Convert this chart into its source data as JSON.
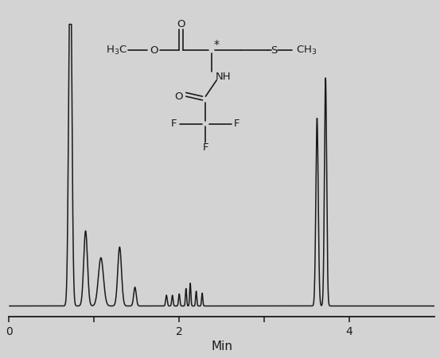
{
  "background_color": "#d3d3d3",
  "line_color": "#1a1a1a",
  "xlim": [
    0,
    5.0
  ],
  "ylim": [
    -0.04,
    1.12
  ],
  "xlabel": "Min",
  "xlabel_fontsize": 11,
  "tick_fontsize": 10,
  "xtick_positions": [
    0,
    1,
    2,
    3,
    4
  ],
  "xtick_labels": [
    "0",
    "",
    "2",
    "",
    "4"
  ],
  "peaks": [
    {
      "mu": 0.72,
      "sigma": 0.018,
      "amp": 1.4
    },
    {
      "mu": 0.9,
      "sigma": 0.022,
      "amp": 0.28
    },
    {
      "mu": 1.08,
      "sigma": 0.03,
      "amp": 0.18
    },
    {
      "mu": 1.3,
      "sigma": 0.022,
      "amp": 0.22
    },
    {
      "mu": 1.48,
      "sigma": 0.015,
      "amp": 0.07
    },
    {
      "mu": 1.85,
      "sigma": 0.009,
      "amp": 0.04
    },
    {
      "mu": 1.92,
      "sigma": 0.008,
      "amp": 0.04
    },
    {
      "mu": 2.0,
      "sigma": 0.008,
      "amp": 0.045
    },
    {
      "mu": 2.08,
      "sigma": 0.007,
      "amp": 0.065
    },
    {
      "mu": 2.13,
      "sigma": 0.007,
      "amp": 0.085
    },
    {
      "mu": 2.2,
      "sigma": 0.007,
      "amp": 0.055
    },
    {
      "mu": 2.27,
      "sigma": 0.007,
      "amp": 0.048
    },
    {
      "mu": 3.62,
      "sigma": 0.014,
      "amp": 0.7
    },
    {
      "mu": 3.72,
      "sigma": 0.013,
      "amp": 0.85
    }
  ]
}
